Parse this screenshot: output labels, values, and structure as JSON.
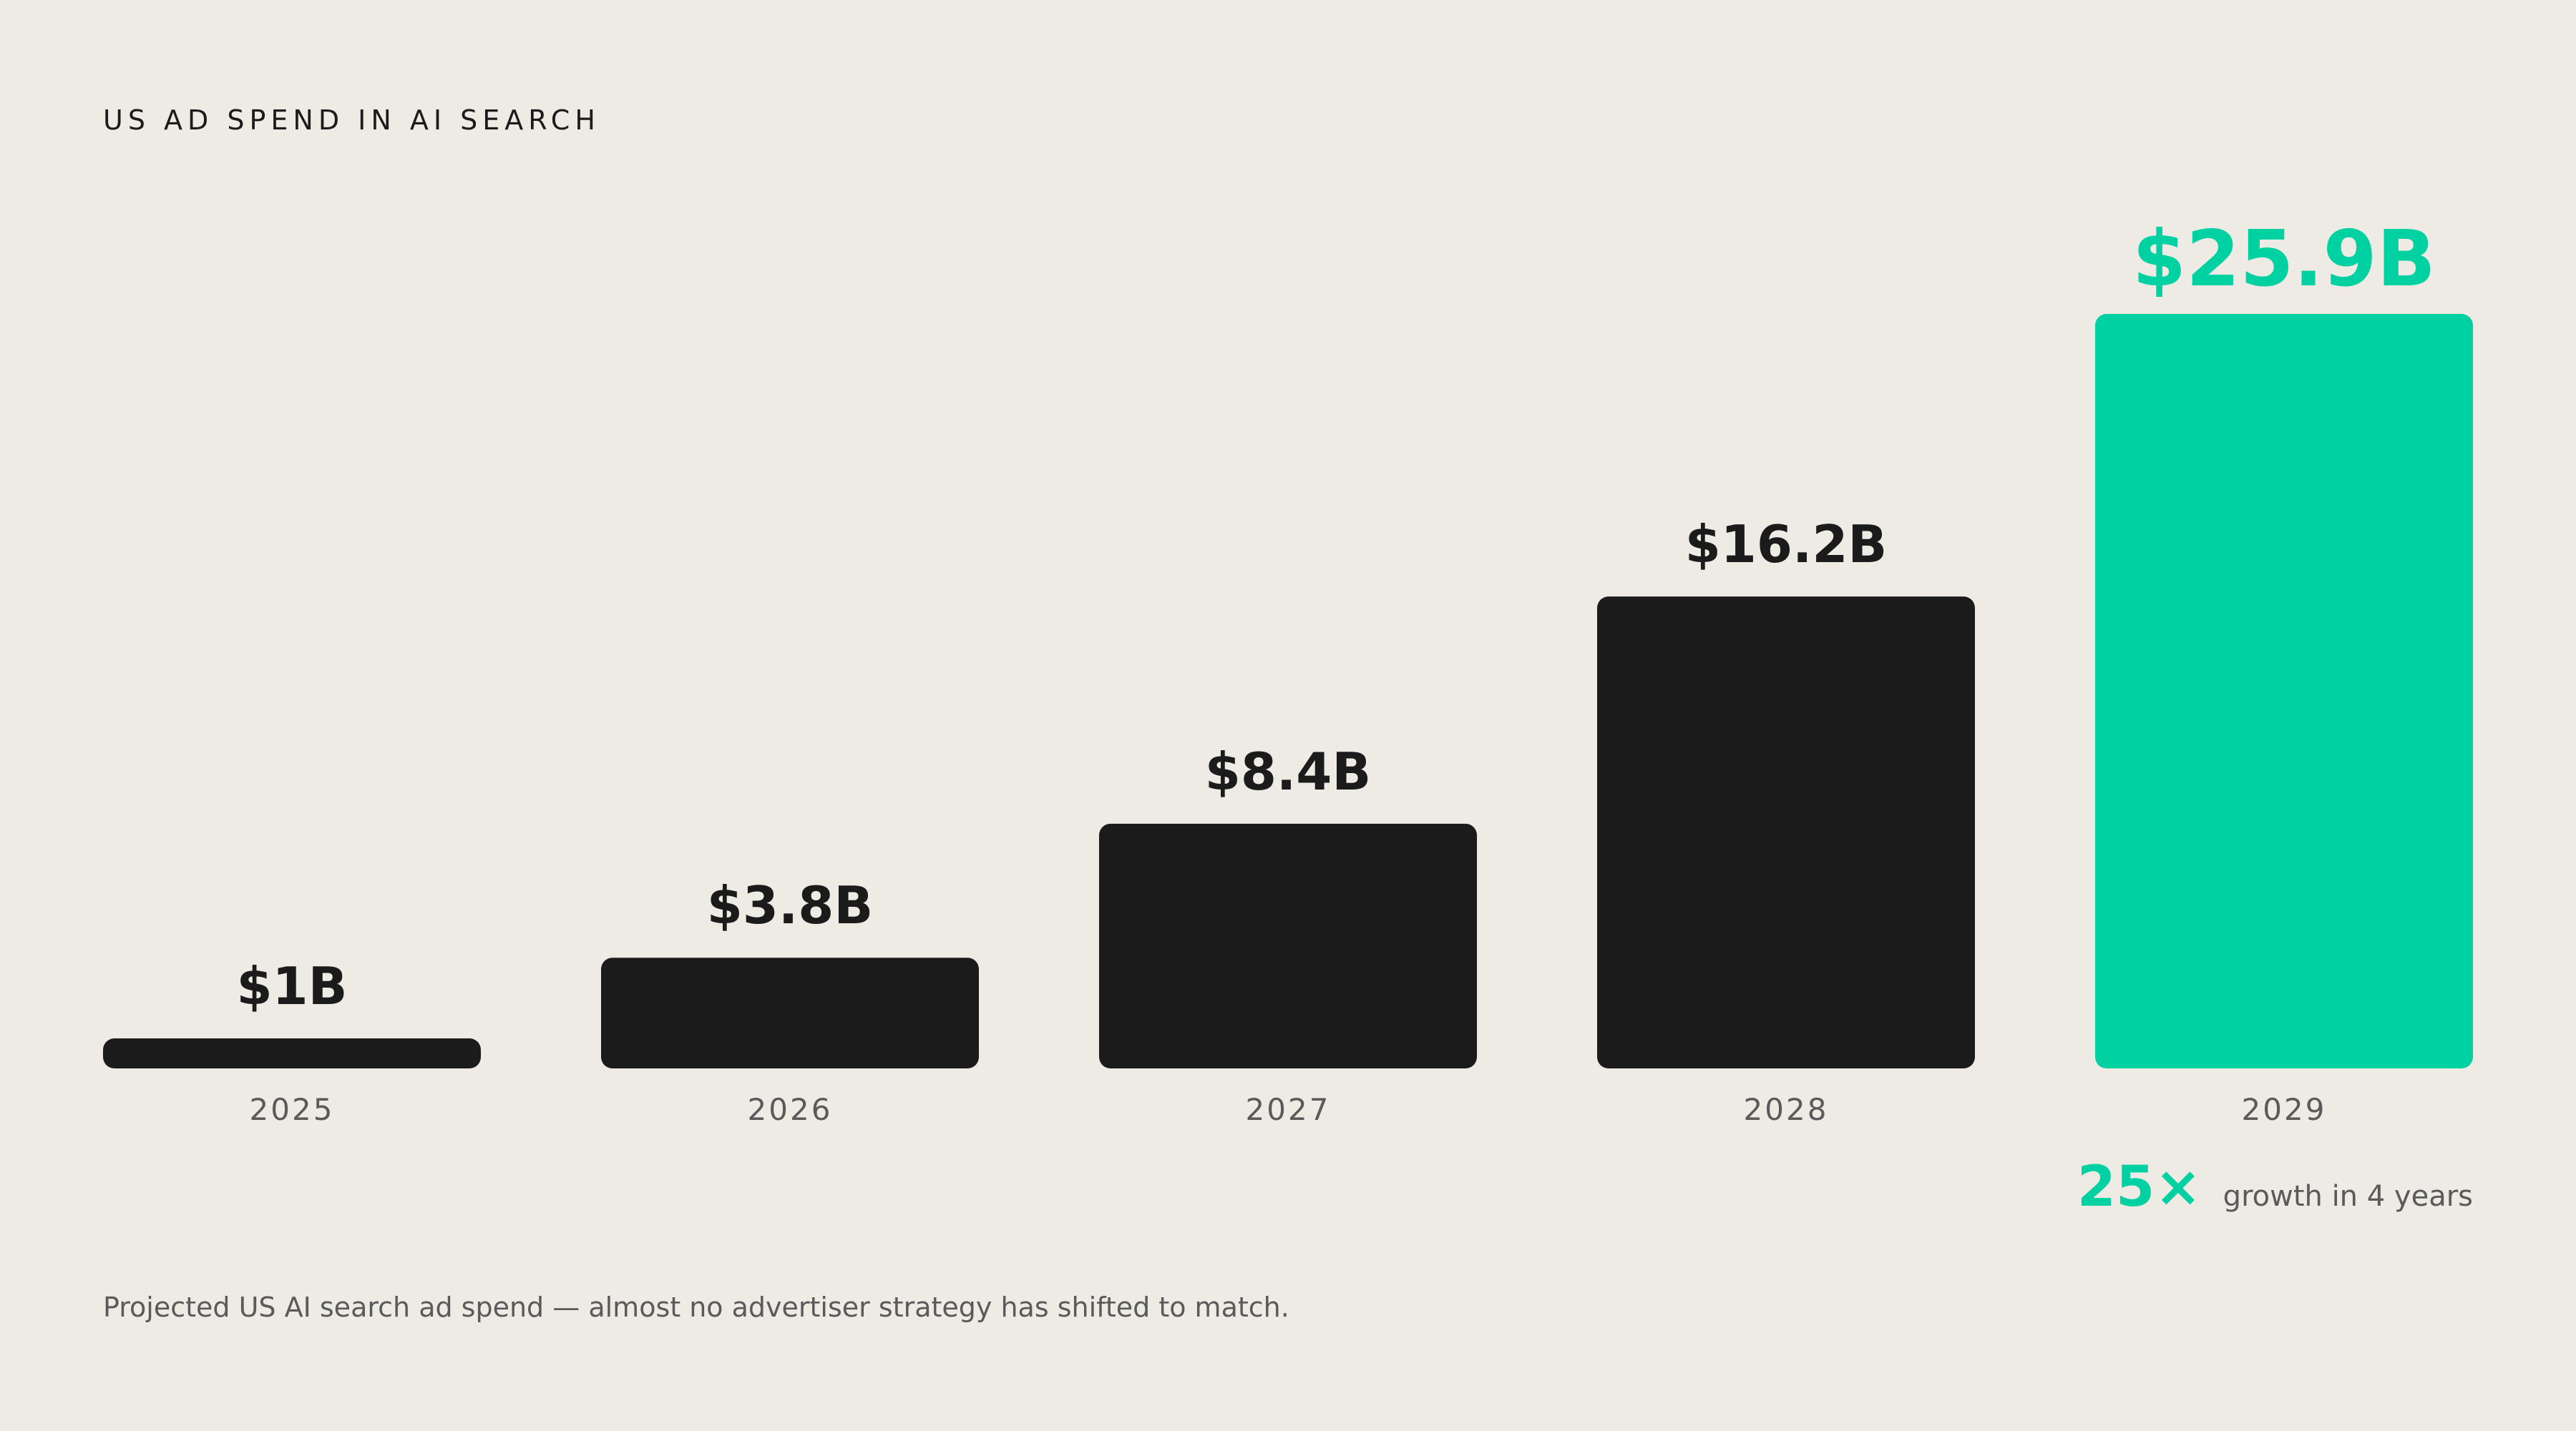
{
  "chart_data": {
    "type": "bar",
    "title": "US AD SPEND IN AI SEARCH",
    "categories": [
      "2025",
      "2026",
      "2027",
      "2028",
      "2029"
    ],
    "values": [
      1,
      3.8,
      8.4,
      16.2,
      25.9
    ],
    "data_labels": [
      "$1B",
      "$3.8B",
      "$8.4B",
      "$16.2B",
      "$25.9B"
    ],
    "unit": "$B",
    "ylim": [
      0,
      25.9
    ],
    "grid": false,
    "highlight_index": 4,
    "bar_color": "#1B1B1B",
    "highlight_color": "#00D1A3",
    "label_color": "#1B1B1B",
    "tick_color": "#5A5A5A"
  },
  "growth": {
    "value": "25×",
    "label": "growth in 4 years",
    "color": "#00D1A3"
  },
  "footnote": "Projected US AI search ad spend — almost no advertiser strategy has shifted to match."
}
